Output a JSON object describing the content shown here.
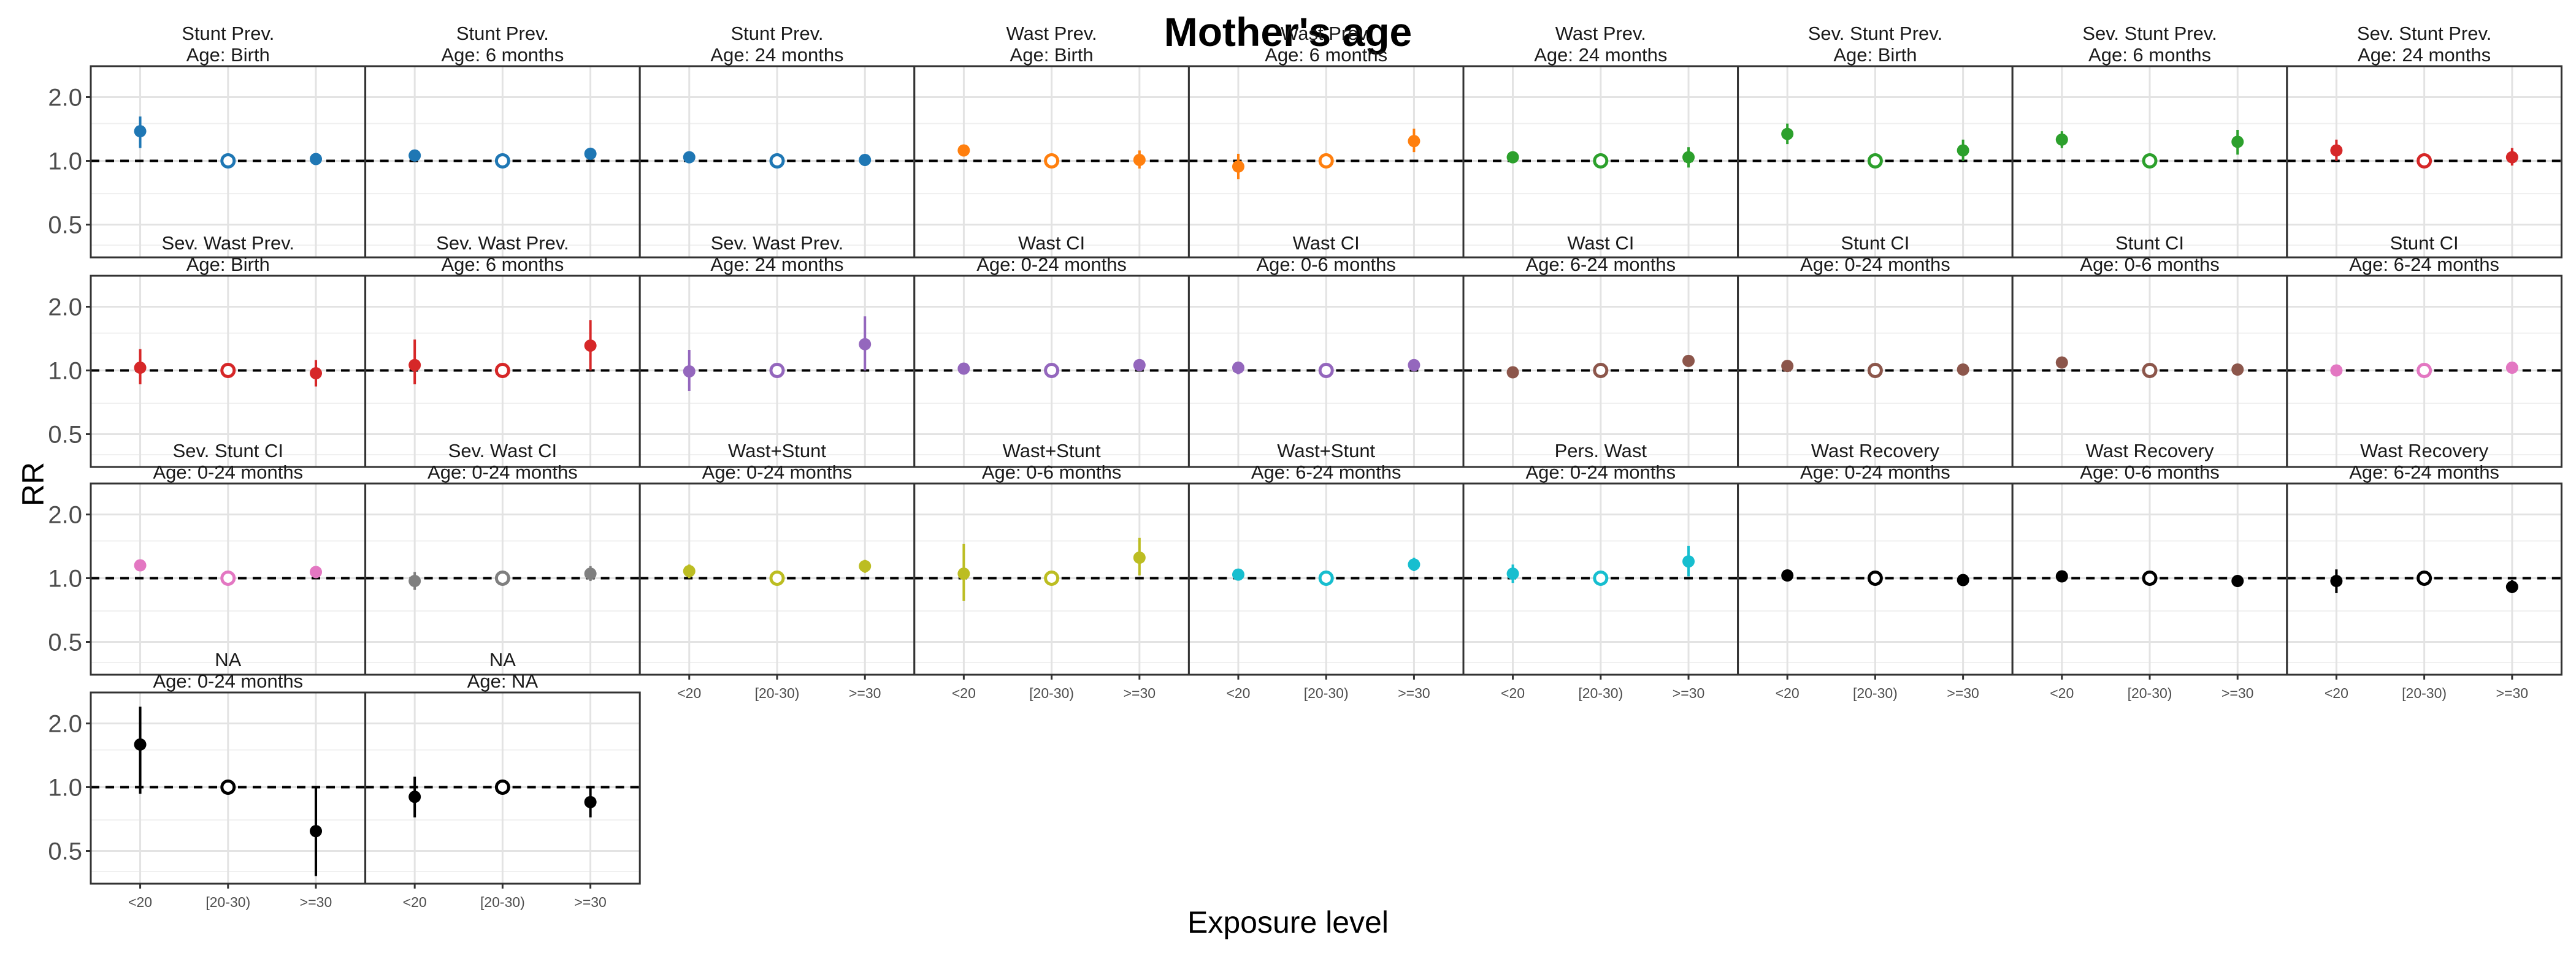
{
  "chart_data": {
    "type": "scatter",
    "title": "Mother's age",
    "xlabel": "Exposure level",
    "ylabel": "RR",
    "categories": [
      "<20",
      "[20-30)",
      ">=30"
    ],
    "reference_category": "[20-30)",
    "reference_line": 1.0,
    "y_scale": "log",
    "ylim": [
      0.35,
      2.8
    ],
    "y_ticks": [
      "0.5",
      "1.0",
      "2.0"
    ],
    "grid": true,
    "facets": [
      {
        "title": "Stunt Prev.",
        "subtitle": "Age: Birth",
        "color": "#1F77B4",
        "points": [
          {
            "x": "<20",
            "rr": 1.38,
            "lo": 1.15,
            "hi": 1.62
          },
          {
            "x": "[20-30)",
            "rr": 1.0
          },
          {
            "x": ">=30",
            "rr": 1.02,
            "lo": 0.98,
            "hi": 1.07
          }
        ]
      },
      {
        "title": "Stunt Prev.",
        "subtitle": "Age: 6 months",
        "color": "#1F77B4",
        "points": [
          {
            "x": "<20",
            "rr": 1.06,
            "lo": 1.01,
            "hi": 1.12
          },
          {
            "x": "[20-30)",
            "rr": 1.0
          },
          {
            "x": ">=30",
            "rr": 1.08,
            "lo": 1.03,
            "hi": 1.13
          }
        ]
      },
      {
        "title": "Stunt Prev.",
        "subtitle": "Age: 24 months",
        "color": "#1F77B4",
        "points": [
          {
            "x": "<20",
            "rr": 1.04,
            "lo": 1.0,
            "hi": 1.08
          },
          {
            "x": "[20-30)",
            "rr": 1.0
          },
          {
            "x": ">=30",
            "rr": 1.01,
            "lo": 0.98,
            "hi": 1.04
          }
        ]
      },
      {
        "title": "Wast Prev.",
        "subtitle": "Age: Birth",
        "color": "#FF7F0E",
        "points": [
          {
            "x": "<20",
            "rr": 1.12,
            "lo": 1.06,
            "hi": 1.18
          },
          {
            "x": "[20-30)",
            "rr": 1.0
          },
          {
            "x": ">=30",
            "rr": 1.01,
            "lo": 0.92,
            "hi": 1.12
          }
        ]
      },
      {
        "title": "Wast Prev.",
        "subtitle": "Age: 6 months",
        "color": "#FF7F0E",
        "points": [
          {
            "x": "<20",
            "rr": 0.94,
            "lo": 0.82,
            "hi": 1.08
          },
          {
            "x": "[20-30)",
            "rr": 1.0
          },
          {
            "x": ">=30",
            "rr": 1.24,
            "lo": 1.1,
            "hi": 1.42
          }
        ]
      },
      {
        "title": "Wast Prev.",
        "subtitle": "Age: 24 months",
        "color": "#2CA02C",
        "points": [
          {
            "x": "<20",
            "rr": 1.04,
            "lo": 0.98,
            "hi": 1.1
          },
          {
            "x": "[20-30)",
            "rr": 1.0
          },
          {
            "x": ">=30",
            "rr": 1.04,
            "lo": 0.93,
            "hi": 1.16
          }
        ]
      },
      {
        "title": "Sev. Stunt Prev.",
        "subtitle": "Age: Birth",
        "color": "#2CA02C",
        "points": [
          {
            "x": "<20",
            "rr": 1.34,
            "lo": 1.2,
            "hi": 1.5
          },
          {
            "x": "[20-30)",
            "rr": 1.0
          },
          {
            "x": ">=30",
            "rr": 1.12,
            "lo": 1.0,
            "hi": 1.26
          }
        ]
      },
      {
        "title": "Sev. Stunt Prev.",
        "subtitle": "Age: 6 months",
        "color": "#2CA02C",
        "points": [
          {
            "x": "<20",
            "rr": 1.26,
            "lo": 1.15,
            "hi": 1.38
          },
          {
            "x": "[20-30)",
            "rr": 1.0
          },
          {
            "x": ">=30",
            "rr": 1.23,
            "lo": 1.07,
            "hi": 1.4
          }
        ]
      },
      {
        "title": "Sev. Stunt Prev.",
        "subtitle": "Age: 24 months",
        "color": "#D62728",
        "points": [
          {
            "x": "<20",
            "rr": 1.12,
            "lo": 1.0,
            "hi": 1.26
          },
          {
            "x": "[20-30)",
            "rr": 1.0
          },
          {
            "x": ">=30",
            "rr": 1.04,
            "lo": 0.95,
            "hi": 1.15
          }
        ]
      },
      {
        "title": "Sev. Wast Prev.",
        "subtitle": "Age: Birth",
        "color": "#D62728",
        "points": [
          {
            "x": "<20",
            "rr": 1.03,
            "lo": 0.86,
            "hi": 1.26
          },
          {
            "x": "[20-30)",
            "rr": 1.0
          },
          {
            "x": ">=30",
            "rr": 0.97,
            "lo": 0.84,
            "hi": 1.12
          }
        ]
      },
      {
        "title": "Sev. Wast Prev.",
        "subtitle": "Age: 6 months",
        "color": "#D62728",
        "points": [
          {
            "x": "<20",
            "rr": 1.06,
            "lo": 0.86,
            "hi": 1.4
          },
          {
            "x": "[20-30)",
            "rr": 1.0
          },
          {
            "x": ">=30",
            "rr": 1.31,
            "lo": 1.0,
            "hi": 1.73
          }
        ]
      },
      {
        "title": "Sev. Wast Prev.",
        "subtitle": "Age: 24 months",
        "color": "#9467BD",
        "points": [
          {
            "x": "<20",
            "rr": 0.99,
            "lo": 0.8,
            "hi": 1.25
          },
          {
            "x": "[20-30)",
            "rr": 1.0
          },
          {
            "x": ">=30",
            "rr": 1.33,
            "lo": 1.0,
            "hi": 1.8
          }
        ]
      },
      {
        "title": "Wast CI",
        "subtitle": "Age: 0-24 months",
        "color": "#9467BD",
        "points": [
          {
            "x": "<20",
            "rr": 1.02,
            "lo": 0.97,
            "hi": 1.07
          },
          {
            "x": "[20-30)",
            "rr": 1.0
          },
          {
            "x": ">=30",
            "rr": 1.06,
            "lo": 1.0,
            "hi": 1.12
          }
        ]
      },
      {
        "title": "Wast CI",
        "subtitle": "Age: 0-6 months",
        "color": "#9467BD",
        "points": [
          {
            "x": "<20",
            "rr": 1.03,
            "lo": 0.96,
            "hi": 1.1
          },
          {
            "x": "[20-30)",
            "rr": 1.0
          },
          {
            "x": ">=30",
            "rr": 1.06,
            "lo": 0.99,
            "hi": 1.13
          }
        ]
      },
      {
        "title": "Wast CI",
        "subtitle": "Age: 6-24 months",
        "color": "#8C564B",
        "points": [
          {
            "x": "<20",
            "rr": 0.98,
            "lo": 0.94,
            "hi": 1.02
          },
          {
            "x": "[20-30)",
            "rr": 1.0
          },
          {
            "x": ">=30",
            "rr": 1.11,
            "lo": 1.06,
            "hi": 1.16
          }
        ]
      },
      {
        "title": "Stunt CI",
        "subtitle": "Age: 0-24 months",
        "color": "#8C564B",
        "points": [
          {
            "x": "<20",
            "rr": 1.05,
            "lo": 1.0,
            "hi": 1.1
          },
          {
            "x": "[20-30)",
            "rr": 1.0
          },
          {
            "x": ">=30",
            "rr": 1.01,
            "lo": 0.97,
            "hi": 1.05
          }
        ]
      },
      {
        "title": "Stunt CI",
        "subtitle": "Age: 0-6 months",
        "color": "#8C564B",
        "points": [
          {
            "x": "<20",
            "rr": 1.09,
            "lo": 1.02,
            "hi": 1.16
          },
          {
            "x": "[20-30)",
            "rr": 1.0
          },
          {
            "x": ">=30",
            "rr": 1.01,
            "lo": 0.97,
            "hi": 1.05
          }
        ]
      },
      {
        "title": "Stunt CI",
        "subtitle": "Age: 6-24 months",
        "color": "#E377C2",
        "points": [
          {
            "x": "<20",
            "rr": 1.0,
            "lo": 0.97,
            "hi": 1.04
          },
          {
            "x": "[20-30)",
            "rr": 1.0
          },
          {
            "x": ">=30",
            "rr": 1.03,
            "lo": 0.99,
            "hi": 1.07
          }
        ]
      },
      {
        "title": "Sev. Stunt CI",
        "subtitle": "Age: 0-24 months",
        "color": "#E377C2",
        "points": [
          {
            "x": "<20",
            "rr": 1.15,
            "lo": 1.08,
            "hi": 1.22
          },
          {
            "x": "[20-30)",
            "rr": 1.0
          },
          {
            "x": ">=30",
            "rr": 1.07,
            "lo": 1.0,
            "hi": 1.14
          }
        ]
      },
      {
        "title": "Sev. Wast CI",
        "subtitle": "Age: 0-24 months",
        "color": "#7F7F7F",
        "points": [
          {
            "x": "<20",
            "rr": 0.97,
            "lo": 0.88,
            "hi": 1.07
          },
          {
            "x": "[20-30)",
            "rr": 1.0
          },
          {
            "x": ">=30",
            "rr": 1.05,
            "lo": 0.97,
            "hi": 1.14
          }
        ]
      },
      {
        "title": "Wast+Stunt",
        "subtitle": "Age: 0-24 months",
        "color": "#BCBD22",
        "points": [
          {
            "x": "<20",
            "rr": 1.08,
            "lo": 1.0,
            "hi": 1.16
          },
          {
            "x": "[20-30)",
            "rr": 1.0
          },
          {
            "x": ">=30",
            "rr": 1.14,
            "lo": 1.06,
            "hi": 1.22
          }
        ]
      },
      {
        "title": "Wast+Stunt",
        "subtitle": "Age: 0-6 months",
        "color": "#BCBD22",
        "points": [
          {
            "x": "<20",
            "rr": 1.05,
            "lo": 0.78,
            "hi": 1.45
          },
          {
            "x": "[20-30)",
            "rr": 1.0
          },
          {
            "x": ">=30",
            "rr": 1.25,
            "lo": 1.03,
            "hi": 1.55
          }
        ]
      },
      {
        "title": "Wast+Stunt",
        "subtitle": "Age: 6-24 months",
        "color": "#17BECF",
        "points": [
          {
            "x": "<20",
            "rr": 1.04,
            "lo": 0.98,
            "hi": 1.1
          },
          {
            "x": "[20-30)",
            "rr": 1.0
          },
          {
            "x": ">=30",
            "rr": 1.16,
            "lo": 1.08,
            "hi": 1.25
          }
        ]
      },
      {
        "title": "Pers. Wast",
        "subtitle": "Age: 0-24 months",
        "color": "#17BECF",
        "points": [
          {
            "x": "<20",
            "rr": 1.05,
            "lo": 0.95,
            "hi": 1.16
          },
          {
            "x": "[20-30)",
            "rr": 1.0
          },
          {
            "x": ">=30",
            "rr": 1.2,
            "lo": 1.02,
            "hi": 1.42
          }
        ]
      },
      {
        "title": "Wast Recovery",
        "subtitle": "Age: 0-24 months",
        "color": "#000000",
        "points": [
          {
            "x": "<20",
            "rr": 1.03,
            "lo": 0.99,
            "hi": 1.07
          },
          {
            "x": "[20-30)",
            "rr": 1.0
          },
          {
            "x": ">=30",
            "rr": 0.98,
            "lo": 0.95,
            "hi": 1.01
          }
        ]
      },
      {
        "title": "Wast Recovery",
        "subtitle": "Age: 0-6 months",
        "color": "#000000",
        "points": [
          {
            "x": "<20",
            "rr": 1.02,
            "lo": 0.98,
            "hi": 1.06
          },
          {
            "x": "[20-30)",
            "rr": 1.0
          },
          {
            "x": ">=30",
            "rr": 0.97,
            "lo": 0.94,
            "hi": 1.0
          }
        ]
      },
      {
        "title": "Wast Recovery",
        "subtitle": "Age: 6-24 months",
        "color": "#000000",
        "points": [
          {
            "x": "<20",
            "rr": 0.97,
            "lo": 0.85,
            "hi": 1.1
          },
          {
            "x": "[20-30)",
            "rr": 1.0
          },
          {
            "x": ">=30",
            "rr": 0.91,
            "lo": 0.85,
            "hi": 0.98
          }
        ]
      },
      {
        "title": "NA",
        "subtitle": "Age: 0-24 months",
        "color": "#000000",
        "points": [
          {
            "x": "<20",
            "rr": 1.59,
            "lo": 0.93,
            "hi": 2.4
          },
          {
            "x": "[20-30)",
            "rr": 1.0
          },
          {
            "x": ">=30",
            "rr": 0.62,
            "lo": 0.38,
            "hi": 1.0
          }
        ]
      },
      {
        "title": "NA",
        "subtitle": "Age: NA",
        "color": "#000000",
        "points": [
          {
            "x": "<20",
            "rr": 0.9,
            "lo": 0.72,
            "hi": 1.12
          },
          {
            "x": "[20-30)",
            "rr": 1.0
          },
          {
            "x": ">=30",
            "rr": 0.85,
            "lo": 0.72,
            "hi": 1.0
          }
        ]
      }
    ]
  }
}
